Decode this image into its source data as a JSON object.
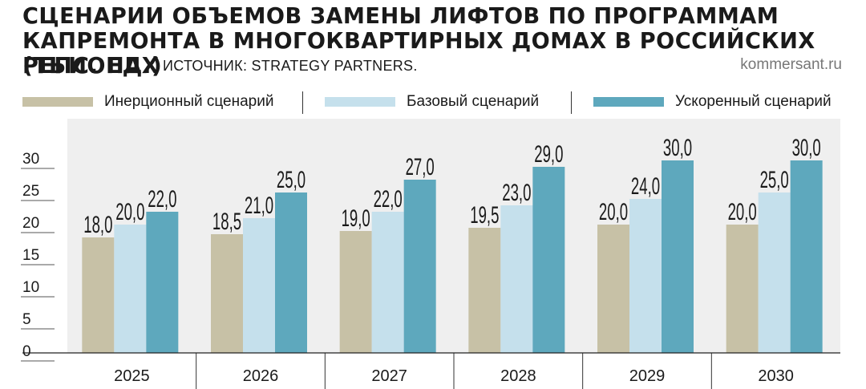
{
  "header": {
    "title_line1": "СЦЕНАРИИ ОБЪЕМОВ ЗАМЕНЫ ЛИФТОВ ПО ПРОГРАММАМ",
    "title_line2": "КАПРЕМОНТА В МНОГОКВАРТИРНЫХ ДОМАХ В РОССИЙСКИХ РЕГИОНАХ",
    "title_line3": "(ТЫС. ЕД.)",
    "source": "ИСТОЧНИК: STRATEGY PARTNERS.",
    "site": "kommersant.ru"
  },
  "chart_data": {
    "type": "bar",
    "title": "СЦЕНАРИИ ОБЪЕМОВ ЗАМЕНЫ ЛИФТОВ ПО ПРОГРАММАМ КАПРЕМОНТА В МНОГОКВАРТИРНЫХ ДОМАХ В РОССИЙСКИХ РЕГИОНАХ (ТЫС. ЕД.)",
    "categories": [
      "2025",
      "2026",
      "2027",
      "2028",
      "2029",
      "2030"
    ],
    "series": [
      {
        "name": "Инерционный сценарий",
        "color": "#c7c1a6",
        "values": [
          18.0,
          18.5,
          19.0,
          19.5,
          20.0,
          20.0
        ],
        "labels": [
          "18,0",
          "18,5",
          "19,0",
          "19,5",
          "20,0",
          "20,0"
        ]
      },
      {
        "name": "Базовый сценарий",
        "color": "#c5e0ec",
        "values": [
          20.0,
          21.0,
          22.0,
          23.0,
          24.0,
          25.0
        ],
        "labels": [
          "20,0",
          "21,0",
          "22,0",
          "23,0",
          "24,0",
          "25,0"
        ]
      },
      {
        "name": "Ускоренный сценарий",
        "color": "#5ea8bd",
        "values": [
          22.0,
          25.0,
          27.0,
          29.0,
          30.0,
          30.0
        ],
        "labels": [
          "22,0",
          "25,0",
          "27,0",
          "29,0",
          "30,0",
          "30,0"
        ]
      }
    ],
    "yticks": [
      "0",
      "5",
      "10",
      "15",
      "20",
      "25",
      "30"
    ],
    "ylim": [
      0,
      30
    ],
    "grid": false,
    "legend": "top",
    "background": "#efefef"
  }
}
